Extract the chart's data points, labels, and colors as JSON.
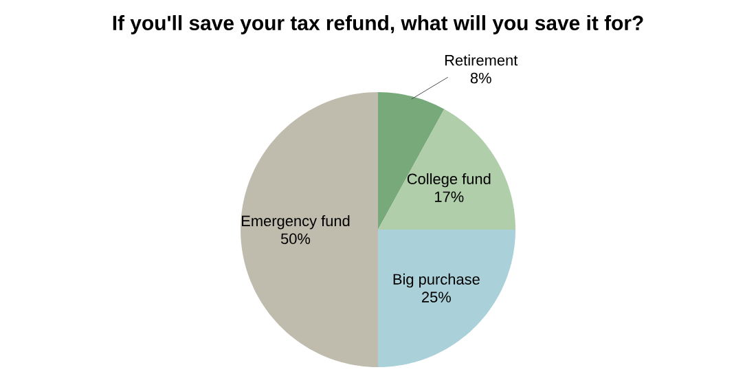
{
  "chart_data": {
    "type": "pie",
    "title": "If you'll save your tax refund, what will you save it for?",
    "categories": [
      "Retirement",
      "College fund",
      "Big purchase",
      "Emergency fund"
    ],
    "values": [
      8,
      17,
      25,
      50
    ],
    "value_labels": [
      "8%",
      "17%",
      "25%",
      "50%"
    ],
    "colors": [
      "#77a97b",
      "#afcea9",
      "#aad0d9",
      "#c0bcad"
    ]
  }
}
